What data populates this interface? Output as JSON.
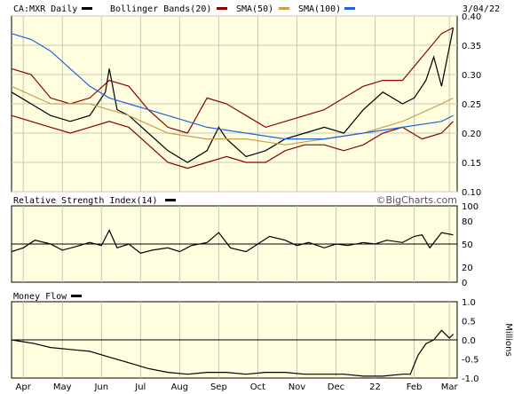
{
  "chart_data": [
    {
      "type": "line",
      "panel": "price",
      "title": "CA:MXR Daily",
      "date": "3/04/22",
      "legend": [
        {
          "name": "Bollinger Bands(20)",
          "color": "#000000"
        },
        {
          "name": "SMA(50)",
          "color": "#8b0000"
        },
        {
          "name": "SMA(100)",
          "color": "#c8a050"
        }
      ],
      "extra_legend_color": "#1e64dc",
      "ylim": [
        0.1,
        0.4
      ],
      "yticks": [
        "0.40",
        "0.35",
        "0.30",
        "0.25",
        "0.20",
        "0.15",
        "0.10"
      ],
      "grid": true,
      "x_months": [
        "Apr",
        "May",
        "Jun",
        "Jul",
        "Aug",
        "Sep",
        "Oct",
        "Nov",
        "Dec",
        "22",
        "Feb",
        "Mar"
      ],
      "x_ticks": [
        0.3,
        1.3,
        2.3,
        3.3,
        4.3,
        5.3,
        6.3,
        7.3,
        8.3,
        9.3,
        10.3,
        11.2
      ],
      "series": [
        {
          "role": "price",
          "color": "#000000",
          "x": [
            0.0,
            0.5,
            1.0,
            1.5,
            2.0,
            2.4,
            2.5,
            2.7,
            3.0,
            3.5,
            4.0,
            4.5,
            5.0,
            5.3,
            5.5,
            6.0,
            6.5,
            7.0,
            7.5,
            8.0,
            8.5,
            9.0,
            9.5,
            10.0,
            10.3,
            10.6,
            10.8,
            11.0,
            11.3
          ],
          "values": [
            0.27,
            0.25,
            0.23,
            0.22,
            0.23,
            0.27,
            0.31,
            0.24,
            0.23,
            0.2,
            0.17,
            0.15,
            0.17,
            0.21,
            0.19,
            0.16,
            0.17,
            0.19,
            0.2,
            0.21,
            0.2,
            0.24,
            0.27,
            0.25,
            0.26,
            0.29,
            0.33,
            0.28,
            0.38
          ]
        },
        {
          "role": "bollinger_upper",
          "color": "#8b0000",
          "x": [
            0.0,
            0.5,
            1.0,
            1.5,
            2.0,
            2.5,
            3.0,
            3.5,
            4.0,
            4.5,
            5.0,
            5.5,
            6.0,
            6.5,
            7.0,
            7.5,
            8.0,
            8.5,
            9.0,
            9.5,
            10.0,
            10.5,
            11.0,
            11.3
          ],
          "values": [
            0.31,
            0.3,
            0.26,
            0.25,
            0.26,
            0.29,
            0.28,
            0.24,
            0.21,
            0.2,
            0.26,
            0.25,
            0.23,
            0.21,
            0.22,
            0.23,
            0.24,
            0.26,
            0.28,
            0.29,
            0.29,
            0.33,
            0.37,
            0.38
          ]
        },
        {
          "role": "bollinger_lower",
          "color": "#8b0000",
          "x": [
            0.0,
            0.5,
            1.0,
            1.5,
            2.0,
            2.5,
            3.0,
            3.5,
            4.0,
            4.5,
            5.0,
            5.5,
            6.0,
            6.5,
            7.0,
            7.5,
            8.0,
            8.5,
            9.0,
            9.5,
            10.0,
            10.5,
            11.0,
            11.3
          ],
          "values": [
            0.23,
            0.22,
            0.21,
            0.2,
            0.21,
            0.22,
            0.21,
            0.18,
            0.15,
            0.14,
            0.15,
            0.16,
            0.15,
            0.15,
            0.17,
            0.18,
            0.18,
            0.17,
            0.18,
            0.2,
            0.21,
            0.19,
            0.2,
            0.22
          ]
        },
        {
          "role": "sma50",
          "color": "#c8a050",
          "x": [
            0.0,
            1.0,
            2.0,
            3.0,
            4.0,
            5.0,
            6.0,
            7.0,
            8.0,
            9.0,
            10.0,
            11.0,
            11.3
          ],
          "values": [
            0.28,
            0.25,
            0.25,
            0.23,
            0.2,
            0.19,
            0.19,
            0.18,
            0.19,
            0.2,
            0.22,
            0.25,
            0.26
          ]
        },
        {
          "role": "sma100",
          "color": "#1e64dc",
          "x": [
            0.0,
            0.5,
            1.0,
            1.5,
            2.0,
            2.5,
            3.0,
            3.5,
            4.0,
            5.0,
            6.0,
            7.0,
            8.0,
            9.0,
            10.0,
            11.0,
            11.3
          ],
          "values": [
            0.37,
            0.36,
            0.34,
            0.31,
            0.28,
            0.26,
            0.25,
            0.24,
            0.23,
            0.21,
            0.2,
            0.19,
            0.19,
            0.2,
            0.21,
            0.22,
            0.23
          ]
        }
      ]
    },
    {
      "type": "line",
      "panel": "rsi",
      "title": "Relative Strength Index(14)",
      "brand": "©BigCharts.com",
      "ylim": [
        0,
        100
      ],
      "yticks": [
        "100",
        "80",
        "50",
        "20",
        "0"
      ],
      "reference_line": 50,
      "series": [
        {
          "name": "",
          "color": "#000000",
          "x": [
            0.0,
            0.3,
            0.6,
            1.0,
            1.3,
            1.6,
            2.0,
            2.3,
            2.5,
            2.7,
            3.0,
            3.3,
            3.6,
            4.0,
            4.3,
            4.6,
            5.0,
            5.3,
            5.6,
            6.0,
            6.3,
            6.6,
            7.0,
            7.3,
            7.6,
            8.0,
            8.3,
            8.6,
            9.0,
            9.3,
            9.6,
            10.0,
            10.3,
            10.5,
            10.7,
            11.0,
            11.3
          ],
          "values": [
            40,
            45,
            55,
            50,
            42,
            46,
            52,
            48,
            68,
            45,
            50,
            38,
            42,
            45,
            40,
            48,
            52,
            65,
            45,
            40,
            50,
            60,
            55,
            48,
            52,
            45,
            50,
            48,
            52,
            50,
            55,
            52,
            60,
            62,
            45,
            65,
            62
          ]
        }
      ]
    },
    {
      "type": "line",
      "panel": "money_flow",
      "title": "Money Flow",
      "right_label": "Millions",
      "ylim": [
        -1.0,
        1.0
      ],
      "yticks": [
        "1.0",
        "0.5",
        "0.0",
        "-0.5",
        "-1.0"
      ],
      "reference_line": 0,
      "series": [
        {
          "name": "",
          "color": "#000000",
          "x": [
            0.0,
            0.3,
            0.6,
            1.0,
            1.5,
            2.0,
            2.5,
            3.0,
            3.5,
            4.0,
            4.5,
            5.0,
            5.5,
            6.0,
            6.5,
            7.0,
            7.5,
            8.0,
            8.5,
            9.0,
            9.5,
            10.0,
            10.2,
            10.4,
            10.6,
            10.8,
            11.0,
            11.2,
            11.3
          ],
          "values": [
            0.0,
            -0.05,
            -0.1,
            -0.2,
            -0.25,
            -0.3,
            -0.45,
            -0.6,
            -0.75,
            -0.85,
            -0.9,
            -0.85,
            -0.85,
            -0.9,
            -0.85,
            -0.85,
            -0.9,
            -0.9,
            -0.9,
            -0.95,
            -0.95,
            -0.9,
            -0.9,
            -0.4,
            -0.1,
            0.0,
            0.25,
            0.05,
            0.15
          ]
        }
      ]
    }
  ]
}
